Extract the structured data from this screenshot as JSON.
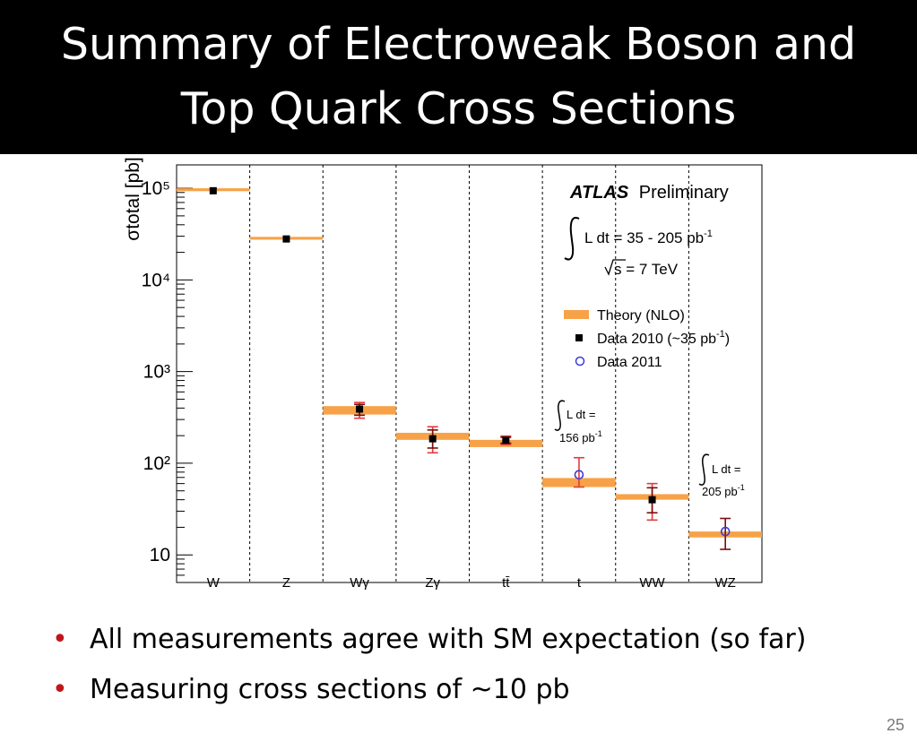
{
  "slide": {
    "title_line1": "Summary of Electroweak Boson and",
    "title_line2": "Top Quark Cross Sections",
    "bullets": [
      "All measurements agree with SM expectation (so far)",
      "Measuring cross sections of ~10 pb"
    ],
    "page_number": "25",
    "bullet_color": "#c0161b"
  },
  "chart_data": {
    "type": "scatter",
    "scale": "log",
    "ylim": [
      5,
      180000
    ],
    "ylabel": "σtotal [pb]",
    "y_tick_labels": [
      "10",
      "10²",
      "10³",
      "10⁴",
      "10⁵"
    ],
    "categories": [
      "W",
      "Z",
      "Wγ",
      "Zγ",
      "tt̄",
      "t",
      "WW",
      "WZ"
    ],
    "theory": {
      "name": "Theory (NLO)",
      "color": "#f7a248",
      "bands": [
        [
          93000,
          100000
        ],
        [
          27500,
          29500
        ],
        [
          340,
          420
        ],
        [
          180,
          215
        ],
        [
          150,
          180
        ],
        [
          55,
          69
        ],
        [
          40,
          46
        ],
        [
          15.5,
          18
        ]
      ]
    },
    "data2010": {
      "name": "Data 2010",
      "color": "#000000",
      "points": [
        {
          "category": "W",
          "value": 94000
        },
        {
          "category": "Z",
          "value": 28000
        },
        {
          "category": "Wγ",
          "value": 390,
          "err": [
            310,
            460
          ]
        },
        {
          "category": "Zγ",
          "value": 185,
          "err": [
            130,
            250
          ]
        },
        {
          "category": "tt̄",
          "value": 178,
          "err": [
            160,
            198
          ]
        },
        {
          "category": "WW",
          "value": 40,
          "err": [
            24,
            60
          ]
        }
      ]
    },
    "data2011": {
      "name": "Data 2011",
      "color": "#3b3bd9",
      "points": [
        {
          "category": "t",
          "value": 75,
          "err": [
            55,
            115
          ]
        },
        {
          "category": "WZ",
          "value": 18,
          "err": [
            11.5,
            25
          ]
        }
      ]
    },
    "error_bar_colors": {
      "stat": "#7a0d0d",
      "total": "#e23b3b"
    },
    "annotations": {
      "experiment": "ATLAS",
      "status": "Preliminary",
      "lumi_prefix": "L dt = 35 - 205 pb",
      "lumi_exp": "-1",
      "energy": "s = 7 TeV",
      "legend_theory": "Theory (NLO)",
      "legend_data2010": "Data 2010  (~35 pb",
      "legend_data2010_exp": "-1",
      "legend_data2010_end": ")",
      "legend_data2011": "Data 2011",
      "t_lumi_1": "L dt =",
      "t_lumi_2": "156 pb",
      "t_lumi_exp": "-1",
      "wz_lumi_1": "L dt =",
      "wz_lumi_2": "205 pb",
      "wz_lumi_exp": "-1"
    }
  }
}
